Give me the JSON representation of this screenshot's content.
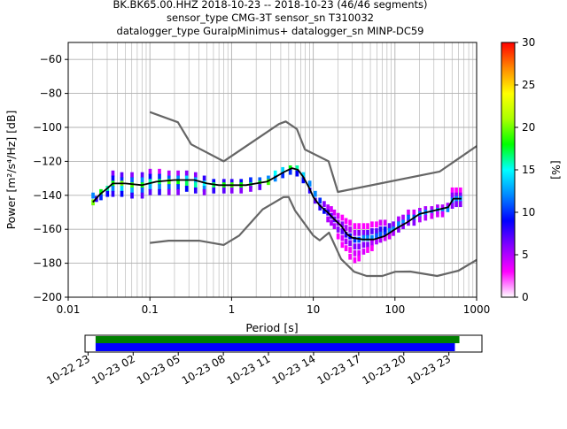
{
  "chart_data": {
    "type": "ppsd",
    "title_lines": [
      "BK.BK65.00.HHZ   2018-10-23 -- 2018-10-23  (46/46 segments)",
      "sensor_type CMG-3T sensor_sn T310032",
      "datalogger_type GuralpMinimus+ datalogger_sn MINP-DC59"
    ],
    "xlabel": "Period [s]",
    "ylabel": "Power [m²/s⁴/Hz] [dB]",
    "xscale": "log",
    "xlim": [
      0.01,
      1000
    ],
    "ylim": [
      -200,
      -50
    ],
    "xticks": [
      {
        "value": 0.01,
        "label": "0.01"
      },
      {
        "value": 0.1,
        "label": "0.1"
      },
      {
        "value": 1,
        "label": "1"
      },
      {
        "value": 10,
        "label": "10"
      },
      {
        "value": 100,
        "label": "100"
      },
      {
        "value": 1000,
        "label": "1000"
      }
    ],
    "yticks": [
      {
        "value": -60,
        "label": "−60"
      },
      {
        "value": -80,
        "label": "−80"
      },
      {
        "value": -100,
        "label": "−100"
      },
      {
        "value": -120,
        "label": "−120"
      },
      {
        "value": -140,
        "label": "−140"
      },
      {
        "value": -160,
        "label": "−160"
      },
      {
        "value": -180,
        "label": "−180"
      },
      {
        "value": -200,
        "label": "−200"
      }
    ],
    "grid": true,
    "colorbar": {
      "label": "[%]",
      "range": [
        0,
        30
      ],
      "ticks": [
        {
          "value": 0,
          "label": "0"
        },
        {
          "value": 5,
          "label": "5"
        },
        {
          "value": 10,
          "label": "10"
        },
        {
          "value": 15,
          "label": "15"
        },
        {
          "value": 20,
          "label": "20"
        },
        {
          "value": 25,
          "label": "25"
        },
        {
          "value": 30,
          "label": "30"
        }
      ],
      "stops": [
        "#ffffff",
        "#ff00ff",
        "#8800ff",
        "#0000ff",
        "#0088ff",
        "#00ffff",
        "#00ff00",
        "#aaff00",
        "#ffff00",
        "#ff8800",
        "#ff0000"
      ]
    },
    "series": [
      {
        "role": "high-noise-model",
        "color": "#666666",
        "points": [
          [
            0.1,
            -91
          ],
          [
            0.22,
            -97
          ],
          [
            0.32,
            -110
          ],
          [
            0.8,
            -120
          ],
          [
            3.8,
            -98
          ],
          [
            4.6,
            -96.5
          ],
          [
            6.3,
            -101
          ],
          [
            7.9,
            -113
          ],
          [
            15.4,
            -120
          ],
          [
            20,
            -138
          ],
          [
            354,
            -126
          ],
          [
            1000,
            -111
          ]
        ]
      },
      {
        "role": "low-noise-model",
        "color": "#666666",
        "points": [
          [
            0.1,
            -168
          ],
          [
            0.17,
            -166.7
          ],
          [
            0.4,
            -166.7
          ],
          [
            0.8,
            -169.2
          ],
          [
            1.24,
            -163.7
          ],
          [
            2.4,
            -148.3
          ],
          [
            4.3,
            -141.1
          ],
          [
            5,
            -141
          ],
          [
            6,
            -149
          ],
          [
            10,
            -163.7
          ],
          [
            12,
            -166.5
          ],
          [
            15.6,
            -162
          ],
          [
            21.9,
            -177.5
          ],
          [
            31.6,
            -185
          ],
          [
            45,
            -187.5
          ],
          [
            70,
            -187.5
          ],
          [
            101,
            -185
          ],
          [
            154,
            -184.9
          ],
          [
            328,
            -187.5
          ],
          [
            600,
            -184.4
          ],
          [
            1000,
            -178
          ]
        ]
      },
      {
        "role": "mean-psd",
        "color": "#000000",
        "points": [
          [
            0.02,
            -144
          ],
          [
            0.025,
            -139
          ],
          [
            0.03,
            -136
          ],
          [
            0.035,
            -133
          ],
          [
            0.05,
            -133
          ],
          [
            0.08,
            -134
          ],
          [
            0.12,
            -132
          ],
          [
            0.2,
            -131
          ],
          [
            0.35,
            -131
          ],
          [
            0.5,
            -133
          ],
          [
            0.7,
            -134
          ],
          [
            1,
            -134
          ],
          [
            1.5,
            -134
          ],
          [
            2,
            -133
          ],
          [
            2.7,
            -132
          ],
          [
            3.5,
            -129
          ],
          [
            4.5,
            -126
          ],
          [
            5.5,
            -124
          ],
          [
            6.5,
            -125
          ],
          [
            7.5,
            -129
          ],
          [
            9,
            -136
          ],
          [
            10,
            -141
          ],
          [
            12,
            -146
          ],
          [
            15,
            -150
          ],
          [
            18,
            -154
          ],
          [
            22,
            -158
          ],
          [
            26,
            -163
          ],
          [
            30,
            -165
          ],
          [
            40,
            -166
          ],
          [
            55,
            -166
          ],
          [
            75,
            -164
          ],
          [
            100,
            -160
          ],
          [
            140,
            -156
          ],
          [
            200,
            -151
          ],
          [
            300,
            -149
          ],
          [
            450,
            -147
          ],
          [
            520,
            -142
          ],
          [
            650,
            -142
          ]
        ]
      }
    ],
    "density_cells": [
      [
        0.02,
        -144,
        20
      ],
      [
        0.02,
        -140,
        12
      ],
      [
        0.022,
        -142,
        8
      ],
      [
        0.025,
        -138,
        18
      ],
      [
        0.025,
        -141,
        10
      ],
      [
        0.03,
        -136,
        16
      ],
      [
        0.03,
        -139,
        9
      ],
      [
        0.035,
        -127,
        6
      ],
      [
        0.035,
        -130,
        9
      ],
      [
        0.035,
        -133,
        18
      ],
      [
        0.035,
        -136,
        12
      ],
      [
        0.035,
        -139,
        8
      ],
      [
        0.045,
        -128,
        7
      ],
      [
        0.045,
        -131,
        10
      ],
      [
        0.045,
        -133,
        20
      ],
      [
        0.045,
        -136,
        14
      ],
      [
        0.045,
        -139,
        9
      ],
      [
        0.06,
        -128,
        6
      ],
      [
        0.06,
        -131,
        11
      ],
      [
        0.06,
        -134,
        19
      ],
      [
        0.06,
        -137,
        13
      ],
      [
        0.06,
        -140,
        8
      ],
      [
        0.08,
        -128,
        7
      ],
      [
        0.08,
        -131,
        12
      ],
      [
        0.08,
        -134,
        18
      ],
      [
        0.08,
        -137,
        11
      ],
      [
        0.08,
        -140,
        7
      ],
      [
        0.1,
        -126,
        5
      ],
      [
        0.1,
        -129,
        9
      ],
      [
        0.1,
        -132,
        16
      ],
      [
        0.1,
        -135,
        13
      ],
      [
        0.1,
        -138,
        7
      ],
      [
        0.13,
        -126,
        4
      ],
      [
        0.13,
        -129,
        10
      ],
      [
        0.13,
        -132,
        17
      ],
      [
        0.13,
        -135,
        12
      ],
      [
        0.13,
        -138,
        8
      ],
      [
        0.17,
        -127,
        5
      ],
      [
        0.17,
        -130,
        11
      ],
      [
        0.17,
        -132,
        19
      ],
      [
        0.17,
        -135,
        11
      ],
      [
        0.17,
        -138,
        6
      ],
      [
        0.22,
        -127,
        5
      ],
      [
        0.22,
        -130,
        12
      ],
      [
        0.22,
        -132,
        18
      ],
      [
        0.22,
        -135,
        10
      ],
      [
        0.22,
        -138,
        6
      ],
      [
        0.28,
        -127,
        6
      ],
      [
        0.28,
        -130,
        14
      ],
      [
        0.28,
        -133,
        17
      ],
      [
        0.28,
        -136,
        9
      ],
      [
        0.36,
        -128,
        6
      ],
      [
        0.36,
        -131,
        13
      ],
      [
        0.36,
        -134,
        16
      ],
      [
        0.36,
        -137,
        8
      ],
      [
        0.46,
        -130,
        8
      ],
      [
        0.46,
        -133,
        15
      ],
      [
        0.46,
        -136,
        12
      ],
      [
        0.46,
        -138,
        6
      ],
      [
        0.6,
        -132,
        9
      ],
      [
        0.6,
        -134,
        17
      ],
      [
        0.6,
        -137,
        8
      ],
      [
        0.8,
        -132,
        8
      ],
      [
        0.8,
        -134,
        18
      ],
      [
        0.8,
        -137,
        7
      ],
      [
        1.0,
        -132,
        8
      ],
      [
        1.0,
        -134,
        19
      ],
      [
        1.0,
        -137,
        6
      ],
      [
        1.3,
        -132,
        9
      ],
      [
        1.3,
        -134,
        18
      ],
      [
        1.3,
        -137,
        6
      ],
      [
        1.7,
        -131,
        10
      ],
      [
        1.7,
        -134,
        17
      ],
      [
        1.7,
        -136,
        6
      ],
      [
        2.2,
        -131,
        11
      ],
      [
        2.2,
        -133,
        18
      ],
      [
        2.2,
        -135,
        7
      ],
      [
        2.8,
        -130,
        12
      ],
      [
        2.8,
        -132,
        19
      ],
      [
        3.4,
        -127,
        15
      ],
      [
        3.4,
        -130,
        12
      ],
      [
        4.2,
        -125,
        14
      ],
      [
        4.2,
        -128,
        10
      ],
      [
        5.2,
        -124,
        18
      ],
      [
        5.2,
        -126,
        10
      ],
      [
        6.3,
        -124,
        16
      ],
      [
        6.3,
        -127,
        9
      ],
      [
        7.5,
        -128,
        14
      ],
      [
        7.5,
        -131,
        9
      ],
      [
        9,
        -133,
        12
      ],
      [
        9,
        -137,
        8
      ],
      [
        10.5,
        -139,
        12
      ],
      [
        10.5,
        -143,
        7
      ],
      [
        12,
        -143,
        10
      ],
      [
        12,
        -147,
        8
      ],
      [
        13.5,
        -145,
        6
      ],
      [
        13.5,
        -149,
        9
      ],
      [
        15,
        -147,
        5
      ],
      [
        15,
        -150,
        8
      ],
      [
        15,
        -154,
        5
      ],
      [
        16.5,
        -148,
        4
      ],
      [
        16.5,
        -152,
        7
      ],
      [
        16.5,
        -156,
        5
      ],
      [
        18,
        -150,
        4
      ],
      [
        18,
        -154,
        7
      ],
      [
        18,
        -158,
        5
      ],
      [
        20,
        -152,
        4
      ],
      [
        20,
        -156,
        6
      ],
      [
        20,
        -160,
        6
      ],
      [
        20,
        -164,
        3
      ],
      [
        22.5,
        -153,
        3
      ],
      [
        22.5,
        -157,
        6
      ],
      [
        22.5,
        -161,
        7
      ],
      [
        22.5,
        -165,
        4
      ],
      [
        22.5,
        -169,
        3
      ],
      [
        25,
        -155,
        3
      ],
      [
        25,
        -159,
        5
      ],
      [
        25,
        -163,
        8
      ],
      [
        25,
        -167,
        5
      ],
      [
        25,
        -171,
        3
      ],
      [
        28,
        -156,
        3
      ],
      [
        28,
        -160,
        5
      ],
      [
        28,
        -164,
        9
      ],
      [
        28,
        -168,
        6
      ],
      [
        28,
        -172,
        3
      ],
      [
        28,
        -176,
        3
      ],
      [
        32,
        -158,
        3
      ],
      [
        32,
        -162,
        5
      ],
      [
        32,
        -166,
        10
      ],
      [
        32,
        -170,
        6
      ],
      [
        32,
        -174,
        4
      ],
      [
        32,
        -178,
        3
      ],
      [
        36,
        -158,
        3
      ],
      [
        36,
        -162,
        6
      ],
      [
        36,
        -166,
        11
      ],
      [
        36,
        -170,
        6
      ],
      [
        36,
        -174,
        4
      ],
      [
        36,
        -177,
        3
      ],
      [
        41,
        -158,
        3
      ],
      [
        41,
        -162,
        6
      ],
      [
        41,
        -165,
        12
      ],
      [
        41,
        -169,
        6
      ],
      [
        41,
        -173,
        4
      ],
      [
        46,
        -158,
        3
      ],
      [
        46,
        -162,
        7
      ],
      [
        46,
        -165,
        12
      ],
      [
        46,
        -169,
        6
      ],
      [
        46,
        -172,
        3
      ],
      [
        52,
        -157,
        3
      ],
      [
        52,
        -161,
        7
      ],
      [
        52,
        -165,
        12
      ],
      [
        52,
        -168,
        5
      ],
      [
        52,
        -171,
        3
      ],
      [
        59,
        -157,
        3
      ],
      [
        59,
        -161,
        7
      ],
      [
        59,
        -164,
        11
      ],
      [
        59,
        -167,
        5
      ],
      [
        66,
        -156,
        4
      ],
      [
        66,
        -160,
        8
      ],
      [
        66,
        -163,
        11
      ],
      [
        66,
        -166,
        5
      ],
      [
        75,
        -156,
        4
      ],
      [
        75,
        -160,
        9
      ],
      [
        75,
        -163,
        10
      ],
      [
        75,
        -165,
        4
      ],
      [
        85,
        -158,
        7
      ],
      [
        85,
        -161,
        12
      ],
      [
        85,
        -164,
        4
      ],
      [
        95,
        -157,
        6
      ],
      [
        95,
        -160,
        12
      ],
      [
        95,
        -162,
        5
      ],
      [
        110,
        -154,
        5
      ],
      [
        110,
        -157,
        12
      ],
      [
        110,
        -160,
        6
      ],
      [
        125,
        -153,
        5
      ],
      [
        125,
        -156,
        12
      ],
      [
        125,
        -158,
        6
      ],
      [
        145,
        -150,
        4
      ],
      [
        145,
        -153,
        11
      ],
      [
        145,
        -156,
        6
      ],
      [
        170,
        -150,
        4
      ],
      [
        170,
        -153,
        11
      ],
      [
        170,
        -156,
        6
      ],
      [
        200,
        -149,
        5
      ],
      [
        200,
        -151,
        12
      ],
      [
        200,
        -154,
        5
      ],
      [
        235,
        -148,
        5
      ],
      [
        235,
        -150,
        12
      ],
      [
        235,
        -153,
        5
      ],
      [
        280,
        -148,
        5
      ],
      [
        280,
        -150,
        12
      ],
      [
        280,
        -152,
        4
      ],
      [
        330,
        -147,
        5
      ],
      [
        330,
        -149,
        12
      ],
      [
        330,
        -151,
        4
      ],
      [
        380,
        -147,
        5
      ],
      [
        380,
        -149,
        12
      ],
      [
        380,
        -151,
        4
      ],
      [
        440,
        -146,
        5
      ],
      [
        440,
        -148,
        12
      ],
      [
        500,
        -137,
        3
      ],
      [
        500,
        -140,
        6
      ],
      [
        500,
        -143,
        12
      ],
      [
        500,
        -146,
        6
      ],
      [
        560,
        -137,
        3
      ],
      [
        560,
        -140,
        6
      ],
      [
        560,
        -142,
        12
      ],
      [
        560,
        -145,
        6
      ],
      [
        630,
        -137,
        3
      ],
      [
        630,
        -140,
        6
      ],
      [
        630,
        -142,
        12
      ],
      [
        630,
        -145,
        6
      ]
    ]
  },
  "timeline": {
    "tick_labels": [
      "10-22 23",
      "10-23 02",
      "10-23 05",
      "10-23 08",
      "10-23 11",
      "10-23 14",
      "10-23 17",
      "10-23 20",
      "10-23 23"
    ],
    "coverage_bars": [
      {
        "name": "data-coverage",
        "color": "#008000",
        "start_hour": 0.5,
        "end_hour": 24.7
      },
      {
        "name": "psd-coverage",
        "color": "#0000ff",
        "start_hour": 0.5,
        "end_hour": 24.4
      }
    ],
    "range_hours": [
      -0.2,
      26.2
    ]
  }
}
